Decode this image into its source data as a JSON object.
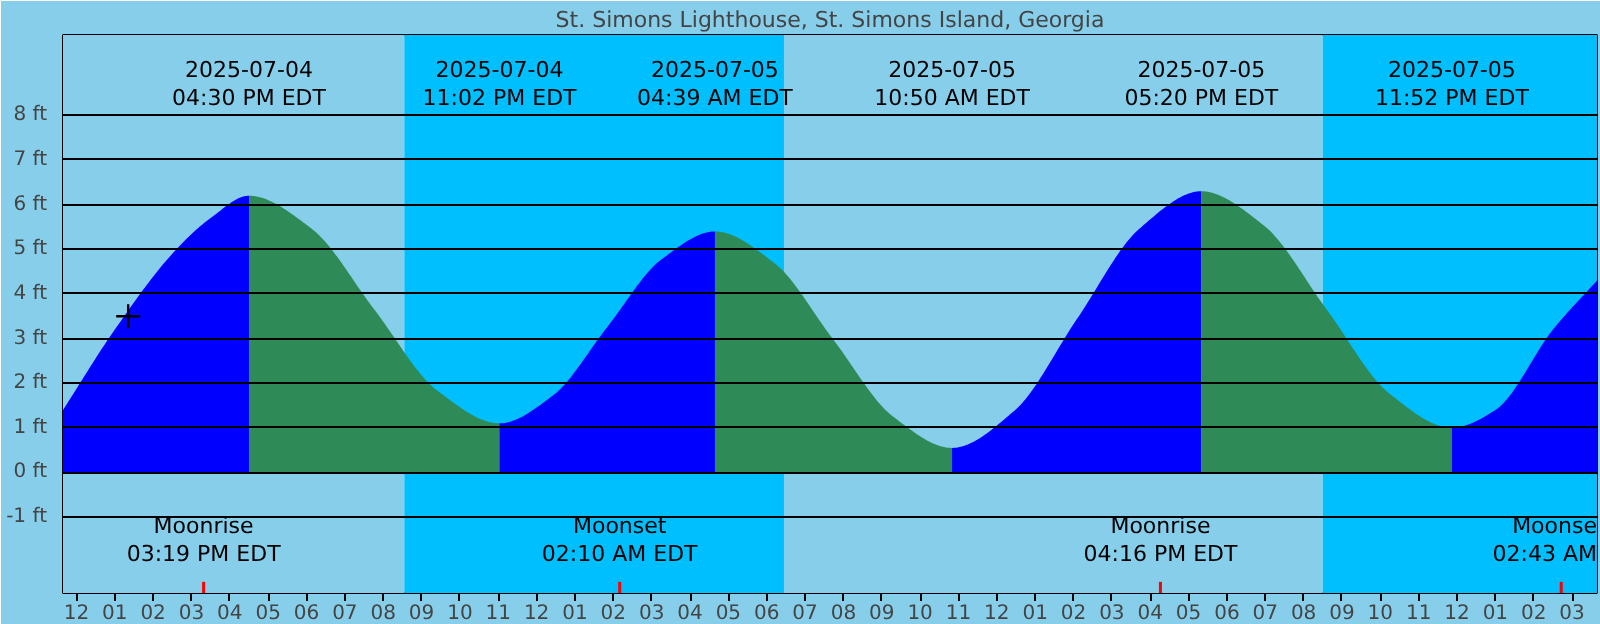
{
  "chart_data": {
    "type": "area",
    "title": "St. Simons Lighthouse, St. Simons Island, Georgia",
    "xlim": [
      "2025-07-04T11:39",
      "2025-07-06T03:39"
    ],
    "ylim": [
      -2.7,
      9.8
    ],
    "xticks": [
      {
        "value": "2025-07-04T12:00",
        "label": "12"
      },
      {
        "value": "2025-07-04T13:00",
        "label": "01"
      },
      {
        "value": "2025-07-04T14:00",
        "label": "02"
      },
      {
        "value": "2025-07-04T15:00",
        "label": "03"
      },
      {
        "value": "2025-07-04T16:00",
        "label": "04"
      },
      {
        "value": "2025-07-04T17:00",
        "label": "05"
      },
      {
        "value": "2025-07-04T18:00",
        "label": "06"
      },
      {
        "value": "2025-07-04T19:00",
        "label": "07"
      },
      {
        "value": "2025-07-04T20:00",
        "label": "08"
      },
      {
        "value": "2025-07-04T21:00",
        "label": "09"
      },
      {
        "value": "2025-07-04T22:00",
        "label": "10"
      },
      {
        "value": "2025-07-04T23:00",
        "label": "11"
      },
      {
        "value": "2025-07-05T00:00",
        "label": "12"
      },
      {
        "value": "2025-07-05T01:00",
        "label": "01"
      },
      {
        "value": "2025-07-05T02:00",
        "label": "02"
      },
      {
        "value": "2025-07-05T03:00",
        "label": "03"
      },
      {
        "value": "2025-07-05T04:00",
        "label": "04"
      },
      {
        "value": "2025-07-05T05:00",
        "label": "05"
      },
      {
        "value": "2025-07-05T06:00",
        "label": "06"
      },
      {
        "value": "2025-07-05T07:00",
        "label": "07"
      },
      {
        "value": "2025-07-05T08:00",
        "label": "08"
      },
      {
        "value": "2025-07-05T09:00",
        "label": "09"
      },
      {
        "value": "2025-07-05T10:00",
        "label": "10"
      },
      {
        "value": "2025-07-05T11:00",
        "label": "11"
      },
      {
        "value": "2025-07-05T12:00",
        "label": "12"
      },
      {
        "value": "2025-07-05T13:00",
        "label": "01"
      },
      {
        "value": "2025-07-05T14:00",
        "label": "02"
      },
      {
        "value": "2025-07-05T15:00",
        "label": "03"
      },
      {
        "value": "2025-07-05T16:00",
        "label": "04"
      },
      {
        "value": "2025-07-05T17:00",
        "label": "05"
      },
      {
        "value": "2025-07-05T18:00",
        "label": "06"
      },
      {
        "value": "2025-07-05T19:00",
        "label": "07"
      },
      {
        "value": "2025-07-05T20:00",
        "label": "08"
      },
      {
        "value": "2025-07-05T21:00",
        "label": "09"
      },
      {
        "value": "2025-07-05T22:00",
        "label": "10"
      },
      {
        "value": "2025-07-05T23:00",
        "label": "11"
      },
      {
        "value": "2025-07-06T00:00",
        "label": "12"
      },
      {
        "value": "2025-07-06T01:00",
        "label": "01"
      },
      {
        "value": "2025-07-06T02:00",
        "label": "02"
      },
      {
        "value": "2025-07-06T03:00",
        "label": "03"
      }
    ],
    "yticks": [
      {
        "value": -1,
        "label": "-1 ft"
      },
      {
        "value": 0,
        "label": "0 ft"
      },
      {
        "value": 1,
        "label": "1 ft"
      },
      {
        "value": 2,
        "label": "2 ft"
      },
      {
        "value": 3,
        "label": "3 ft"
      },
      {
        "value": 4,
        "label": "4 ft"
      },
      {
        "value": 5,
        "label": "5 ft"
      },
      {
        "value": 6,
        "label": "6 ft"
      },
      {
        "value": 7,
        "label": "7 ft"
      },
      {
        "value": 8,
        "label": "8 ft"
      }
    ],
    "grid": "y",
    "bands": [
      {
        "axis": "x",
        "from": "2025-07-04T11:39",
        "to": "2025-07-04T20:33",
        "color": "#87ceeb"
      },
      {
        "axis": "x",
        "from": "2025-07-04T20:33",
        "to": "2025-07-05T06:27",
        "color": "#00bfff"
      },
      {
        "axis": "x",
        "from": "2025-07-05T06:27",
        "to": "2025-07-05T20:30",
        "color": "#87ceeb"
      },
      {
        "axis": "x",
        "from": "2025-07-05T20:30",
        "to": "2025-07-06T03:39",
        "color": "#00bfff"
      }
    ],
    "ref_lines": [
      {
        "axis": "x",
        "value": "2025-07-04T15:19",
        "label": "Moonrise\n03:19 PM EDT",
        "color": "#ff0000"
      },
      {
        "axis": "x",
        "value": "2025-07-05T02:10",
        "label": "Moonset\n02:10 AM EDT",
        "color": "#ff0000"
      },
      {
        "axis": "x",
        "value": "2025-07-05T16:16",
        "label": "Moonrise\n04:16 PM EDT",
        "color": "#ff0000"
      },
      {
        "axis": "x",
        "value": "2025-07-06T02:43",
        "label": "Moonse\n02:43 AM",
        "color": "#ff0000"
      }
    ],
    "series": [
      {
        "color": "#0000ff",
        "x": [
          "2025-07-04T11:39",
          "2025-07-04T13:00",
          "2025-07-04T14:30",
          "2025-07-04T15:30",
          "2025-07-04T16:30"
        ],
        "values": [
          1.4,
          3.2,
          4.9,
          5.7,
          6.2
        ]
      },
      {
        "color": "#2e8b57",
        "x": [
          "2025-07-04T16:30",
          "2025-07-04T18:08",
          "2025-07-04T19:46",
          "2025-07-04T21:24",
          "2025-07-04T23:02"
        ],
        "values": [
          6.2,
          5.46,
          3.65,
          1.84,
          1.1
        ]
      },
      {
        "color": "#0000ff",
        "x": [
          "2025-07-04T23:02",
          "2025-07-05T00:26",
          "2025-07-05T01:50",
          "2025-07-05T03:15",
          "2025-07-05T04:39"
        ],
        "values": [
          1.1,
          1.73,
          3.25,
          4.77,
          5.4
        ]
      },
      {
        "color": "#2e8b57",
        "x": [
          "2025-07-05T04:39",
          "2025-07-05T06:12",
          "2025-07-05T07:44",
          "2025-07-05T09:17",
          "2025-07-05T10:50"
        ],
        "values": [
          5.4,
          4.69,
          2.98,
          1.26,
          0.55
        ]
      },
      {
        "color": "#0000ff",
        "x": [
          "2025-07-05T10:50",
          "2025-07-05T12:28",
          "2025-07-05T14:05",
          "2025-07-05T15:43",
          "2025-07-05T17:20"
        ],
        "values": [
          0.55,
          1.39,
          3.43,
          5.46,
          6.3
        ]
      },
      {
        "color": "#2e8b57",
        "x": [
          "2025-07-05T17:20",
          "2025-07-05T18:58",
          "2025-07-05T20:36",
          "2025-07-05T22:14",
          "2025-07-05T23:52"
        ],
        "values": [
          6.3,
          5.53,
          3.65,
          1.77,
          1.0
        ]
      },
      {
        "color": "#0000ff",
        "x": [
          "2025-07-05T23:52",
          "2025-07-06T01:00",
          "2025-07-06T02:30",
          "2025-07-06T03:39"
        ],
        "values": [
          1.0,
          1.4,
          3.2,
          4.3
        ]
      },
      {
        "type": "scatter",
        "marker": "cross",
        "color": "#000000",
        "x": [
          "2025-07-04T13:21"
        ],
        "values": [
          3.5
        ]
      }
    ],
    "annotations": [
      "2025-07-04\n04:30 PM EDT",
      "2025-07-04\n11:02 PM EDT",
      "2025-07-05\n04:39 AM EDT",
      "2025-07-05\n10:50 AM EDT",
      "2025-07-05\n05:20 PM EDT",
      "2025-07-05\n11:52 PM EDT"
    ]
  }
}
